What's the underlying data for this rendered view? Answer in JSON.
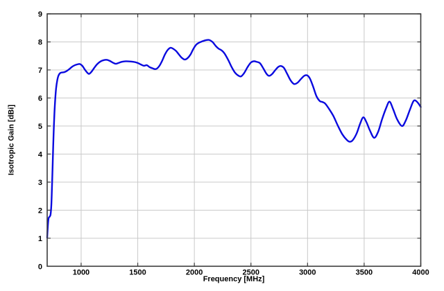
{
  "figure": {
    "background": "#ffffff"
  },
  "chart_data": {
    "type": "line",
    "title": "",
    "xlabel": "Frequency [MHz]",
    "ylabel": "Isotropic Gain [dBi]",
    "xlim": [
      700,
      4000
    ],
    "ylim": [
      0,
      9
    ],
    "x_ticks": [
      1000,
      1500,
      2000,
      2500,
      3000,
      3500,
      4000
    ],
    "x_tick_labels": [
      "1000",
      "1500",
      "2000",
      "2500",
      "3000",
      "3500",
      "4000"
    ],
    "y_ticks": [
      0,
      1,
      2,
      3,
      4,
      5,
      6,
      7,
      8,
      9
    ],
    "y_tick_labels": [
      "0",
      "1",
      "2",
      "3",
      "4",
      "5",
      "6",
      "7",
      "8",
      "9"
    ],
    "grid": true,
    "legend": null,
    "line_color": "#0a0adf",
    "grid_color": "#c9c9c9",
    "axis_color": "#3a3a3a",
    "series": [
      {
        "name": "isotropic-gain",
        "points": [
          [
            700,
            1.02
          ],
          [
            703,
            1.25
          ],
          [
            708,
            1.55
          ],
          [
            713,
            1.72
          ],
          [
            722,
            1.77
          ],
          [
            730,
            1.85
          ],
          [
            737,
            2.2
          ],
          [
            743,
            2.9
          ],
          [
            748,
            3.55
          ],
          [
            753,
            4.25
          ],
          [
            758,
            4.85
          ],
          [
            764,
            5.45
          ],
          [
            771,
            5.95
          ],
          [
            779,
            6.35
          ],
          [
            789,
            6.63
          ],
          [
            800,
            6.8
          ],
          [
            815,
            6.89
          ],
          [
            832,
            6.91
          ],
          [
            850,
            6.92
          ],
          [
            868,
            6.95
          ],
          [
            886,
            7.0
          ],
          [
            904,
            7.06
          ],
          [
            922,
            7.12
          ],
          [
            945,
            7.17
          ],
          [
            968,
            7.2
          ],
          [
            990,
            7.21
          ],
          [
            1012,
            7.14
          ],
          [
            1035,
            7.0
          ],
          [
            1055,
            6.9
          ],
          [
            1070,
            6.86
          ],
          [
            1090,
            6.93
          ],
          [
            1115,
            7.07
          ],
          [
            1140,
            7.2
          ],
          [
            1170,
            7.3
          ],
          [
            1200,
            7.35
          ],
          [
            1228,
            7.36
          ],
          [
            1255,
            7.32
          ],
          [
            1280,
            7.26
          ],
          [
            1305,
            7.22
          ],
          [
            1330,
            7.25
          ],
          [
            1360,
            7.29
          ],
          [
            1395,
            7.31
          ],
          [
            1440,
            7.3
          ],
          [
            1475,
            7.28
          ],
          [
            1505,
            7.24
          ],
          [
            1530,
            7.19
          ],
          [
            1555,
            7.15
          ],
          [
            1580,
            7.17
          ],
          [
            1605,
            7.1
          ],
          [
            1630,
            7.06
          ],
          [
            1652,
            7.03
          ],
          [
            1670,
            7.05
          ],
          [
            1692,
            7.15
          ],
          [
            1716,
            7.33
          ],
          [
            1740,
            7.55
          ],
          [
            1764,
            7.71
          ],
          [
            1790,
            7.79
          ],
          [
            1815,
            7.75
          ],
          [
            1840,
            7.67
          ],
          [
            1866,
            7.54
          ],
          [
            1890,
            7.43
          ],
          [
            1915,
            7.37
          ],
          [
            1940,
            7.42
          ],
          [
            1966,
            7.55
          ],
          [
            1990,
            7.74
          ],
          [
            2014,
            7.89
          ],
          [
            2040,
            7.97
          ],
          [
            2070,
            8.02
          ],
          [
            2100,
            8.06
          ],
          [
            2130,
            8.07
          ],
          [
            2160,
            8.0
          ],
          [
            2188,
            7.86
          ],
          [
            2214,
            7.76
          ],
          [
            2240,
            7.7
          ],
          [
            2266,
            7.59
          ],
          [
            2300,
            7.35
          ],
          [
            2330,
            7.1
          ],
          [
            2360,
            6.9
          ],
          [
            2388,
            6.8
          ],
          [
            2412,
            6.77
          ],
          [
            2440,
            6.89
          ],
          [
            2470,
            7.1
          ],
          [
            2498,
            7.26
          ],
          [
            2524,
            7.31
          ],
          [
            2550,
            7.29
          ],
          [
            2580,
            7.24
          ],
          [
            2610,
            7.05
          ],
          [
            2638,
            6.86
          ],
          [
            2660,
            6.79
          ],
          [
            2686,
            6.85
          ],
          [
            2714,
            6.99
          ],
          [
            2742,
            7.11
          ],
          [
            2766,
            7.14
          ],
          [
            2792,
            7.07
          ],
          [
            2820,
            6.86
          ],
          [
            2850,
            6.63
          ],
          [
            2880,
            6.5
          ],
          [
            2910,
            6.54
          ],
          [
            2940,
            6.67
          ],
          [
            2970,
            6.79
          ],
          [
            2995,
            6.81
          ],
          [
            3020,
            6.7
          ],
          [
            3048,
            6.42
          ],
          [
            3078,
            6.07
          ],
          [
            3108,
            5.89
          ],
          [
            3130,
            5.86
          ],
          [
            3156,
            5.8
          ],
          [
            3190,
            5.61
          ],
          [
            3228,
            5.36
          ],
          [
            3268,
            5.01
          ],
          [
            3308,
            4.7
          ],
          [
            3348,
            4.5
          ],
          [
            3374,
            4.44
          ],
          [
            3400,
            4.5
          ],
          [
            3434,
            4.74
          ],
          [
            3464,
            5.08
          ],
          [
            3492,
            5.31
          ],
          [
            3520,
            5.14
          ],
          [
            3550,
            4.85
          ],
          [
            3588,
            4.58
          ],
          [
            3624,
            4.8
          ],
          [
            3658,
            5.24
          ],
          [
            3694,
            5.64
          ],
          [
            3724,
            5.87
          ],
          [
            3756,
            5.6
          ],
          [
            3790,
            5.25
          ],
          [
            3834,
            5.0
          ],
          [
            3868,
            5.2
          ],
          [
            3904,
            5.58
          ],
          [
            3938,
            5.9
          ],
          [
            3968,
            5.86
          ],
          [
            4000,
            5.68
          ]
        ]
      }
    ]
  }
}
